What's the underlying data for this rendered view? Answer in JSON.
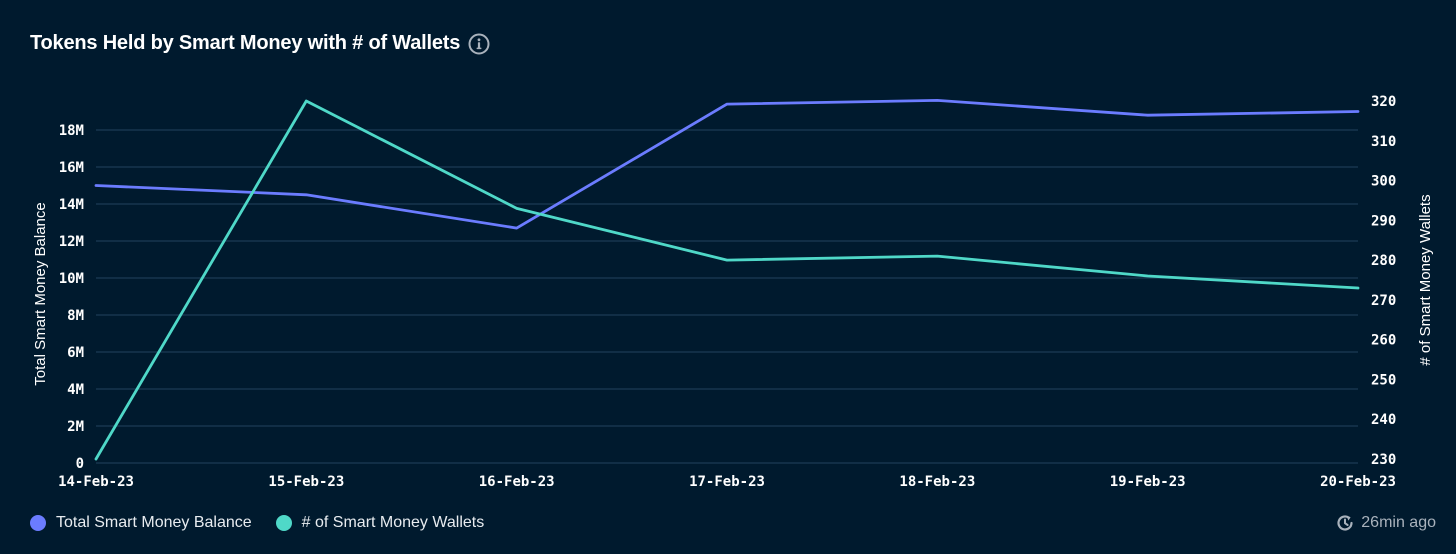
{
  "header": {
    "title": "Tokens Held by Smart Money with # of Wallets",
    "info_icon": "info-circle-icon"
  },
  "footer": {
    "updated_icon": "clock-refresh-icon",
    "updated_text": "26min ago"
  },
  "colors": {
    "background": "#001a2e",
    "balance_series": "#6b7cff",
    "wallets_series": "#4fd8c8",
    "gridline": "#17354f",
    "text": "#ffffff",
    "muted_text": "#a9b2bc"
  },
  "chart_data": {
    "type": "line",
    "title": "Tokens Held by Smart Money with # of Wallets",
    "categories": [
      "14-Feb-23",
      "15-Feb-23",
      "16-Feb-23",
      "17-Feb-23",
      "18-Feb-23",
      "19-Feb-23",
      "20-Feb-23"
    ],
    "xlabel": "",
    "y_left": {
      "label": "Total Smart Money Balance",
      "range": [
        0,
        20000000
      ],
      "ticks": [
        0,
        2000000,
        4000000,
        6000000,
        8000000,
        10000000,
        12000000,
        14000000,
        16000000,
        18000000
      ],
      "tick_labels": [
        "0",
        "2M",
        "4M",
        "6M",
        "8M",
        "10M",
        "12M",
        "14M",
        "16M",
        "18M"
      ]
    },
    "y_right": {
      "label": "# of Smart Money Wallets",
      "range": [
        230,
        320
      ],
      "ticks": [
        230,
        240,
        250,
        260,
        270,
        280,
        290,
        300,
        310,
        320
      ],
      "tick_labels": [
        "230",
        "240",
        "250",
        "260",
        "270",
        "280",
        "290",
        "300",
        "310",
        "320"
      ]
    },
    "series": [
      {
        "name": "Total Smart Money Balance",
        "axis": "left",
        "color": "#6b7cff",
        "values": [
          15000000,
          14500000,
          12700000,
          19400000,
          19600000,
          18800000,
          19000000
        ]
      },
      {
        "name": "# of Smart Money Wallets",
        "axis": "right",
        "color": "#4fd8c8",
        "values": [
          230,
          320,
          293,
          280,
          281,
          276,
          273
        ]
      }
    ],
    "grid": true,
    "legend_position": "bottom-left"
  }
}
